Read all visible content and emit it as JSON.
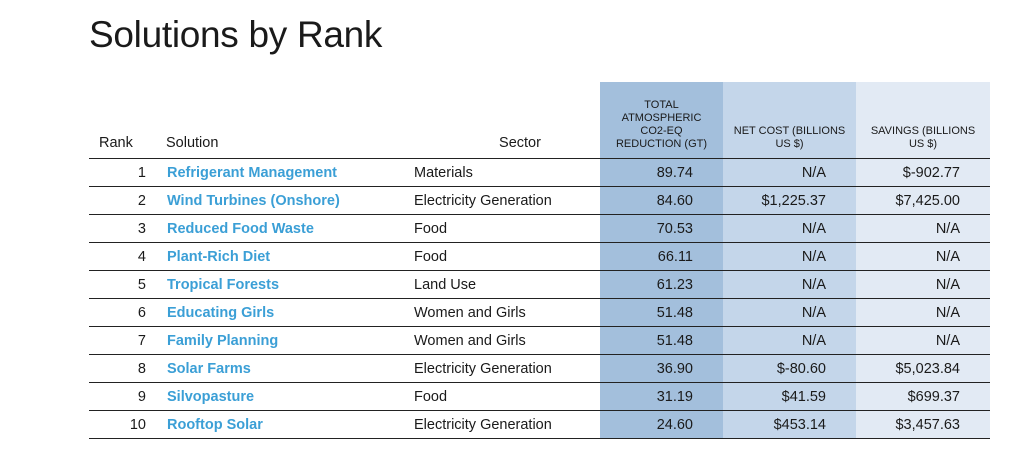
{
  "title": "Solutions by Rank",
  "headers": {
    "rank": "Rank",
    "solution": "Solution",
    "sector": "Sector",
    "total": "TOTAL ATMOSPHERIC CO2-EQ REDUCTION (GT)",
    "net_cost": "NET COST (BILLIONS US $)",
    "savings": "SAVINGS (BILLIONS US $)"
  },
  "colors": {
    "solution_text": "#3b9fd6",
    "total_column": "#a3bfdc",
    "net_cost_column": "#c4d6ea",
    "savings_column": "#e2eaf4"
  },
  "rows": [
    {
      "rank": "1",
      "solution": "Refrigerant Management",
      "sector": "Materials",
      "total": "89.74",
      "net_cost": "N/A",
      "savings": "$-902.77"
    },
    {
      "rank": "2",
      "solution": "Wind Turbines (Onshore)",
      "sector": "Electricity Generation",
      "total": "84.60",
      "net_cost": "$1,225.37",
      "savings": "$7,425.00"
    },
    {
      "rank": "3",
      "solution": "Reduced Food Waste",
      "sector": "Food",
      "total": "70.53",
      "net_cost": "N/A",
      "savings": "N/A"
    },
    {
      "rank": "4",
      "solution": "Plant-Rich Diet",
      "sector": "Food",
      "total": "66.11",
      "net_cost": "N/A",
      "savings": "N/A"
    },
    {
      "rank": "5",
      "solution": "Tropical Forests",
      "sector": "Land Use",
      "total": "61.23",
      "net_cost": "N/A",
      "savings": "N/A"
    },
    {
      "rank": "6",
      "solution": "Educating Girls",
      "sector": "Women and Girls",
      "total": "51.48",
      "net_cost": "N/A",
      "savings": "N/A"
    },
    {
      "rank": "7",
      "solution": "Family Planning",
      "sector": "Women and Girls",
      "total": "51.48",
      "net_cost": "N/A",
      "savings": "N/A"
    },
    {
      "rank": "8",
      "solution": "Solar Farms",
      "sector": "Electricity Generation",
      "total": "36.90",
      "net_cost": "$-80.60",
      "savings": "$5,023.84"
    },
    {
      "rank": "9",
      "solution": "Silvopasture",
      "sector": "Food",
      "total": "31.19",
      "net_cost": "$41.59",
      "savings": "$699.37"
    },
    {
      "rank": "10",
      "solution": "Rooftop Solar",
      "sector": "Electricity Generation",
      "total": "24.60",
      "net_cost": "$453.14",
      "savings": "$3,457.63"
    }
  ]
}
